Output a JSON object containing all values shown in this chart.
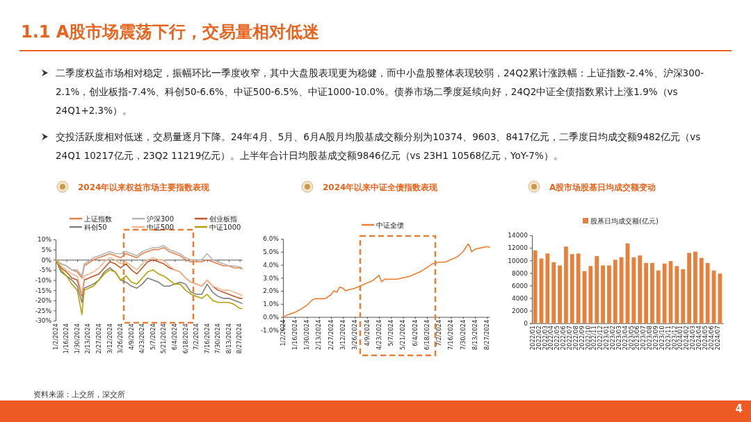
{
  "chart_data": [
    {
      "type": "other",
      "title": "1.1 A股市场震荡下行，交易量相对低迷",
      "annotations": [
        "二季度权益市场相对稳定，振幅环比一季度收窄，其中大盘股表现更为稳健，而中小盘股整体表现较弱，24Q2累计涨跌幅：上证指数-2.4%、沪深300-2.1%，创业板指-7.4%、科创50-6.6%、中证500-6.5%、中证1000-10.0%。债券市场二季度延续向好，24Q2中证全债指数累计上涨1.9%（vs 24Q1+2.3%）。",
        "交投活跃度相对低迷，交易量逐月下降。24年4月、5月、6月A股月均股基成交额分别为10374、9603、8417亿元，二季度日均成交额9482亿元（vs 24Q1 10217亿元，23Q2 11219亿元）。上半年合计日均股基成交额9846亿元（vs 23H1 10568亿元，YoY-7%）。",
        "资料来源：上交所，深交所",
        "4"
      ]
    },
    {
      "type": "line",
      "title": "2024年以来权益市场主要指数表现",
      "legend": "top",
      "x": [
        "2024-01-02",
        "2024-01-09",
        "2024-01-16",
        "2024-01-23",
        "2024-01-30",
        "2024-02-05",
        "2024-02-08",
        "2024-02-20",
        "2024-02-27",
        "2024-03-05",
        "2024-03-12",
        "2024-03-19",
        "2024-03-26",
        "2024-04-02",
        "2024-04-09",
        "2024-04-16",
        "2024-04-23",
        "2024-04-30",
        "2024-05-07",
        "2024-05-14",
        "2024-05-21",
        "2024-05-28",
        "2024-06-04",
        "2024-06-11",
        "2024-06-18",
        "2024-06-25",
        "2024-07-02",
        "2024-07-09",
        "2024-07-16",
        "2024-07-23",
        "2024-07-30",
        "2024-08-06",
        "2024-08-13",
        "2024-08-20",
        "2024-08-27",
        "2024-08-30"
      ],
      "xlim": [
        "2024-01-02",
        "2024-08-30"
      ],
      "xticks": [
        {
          "value": "2024-01-02",
          "label": "1/2/2024"
        },
        {
          "value": "2024-01-16",
          "label": "1/16/2024"
        },
        {
          "value": "2024-01-30",
          "label": "1/30/2024"
        },
        {
          "value": "2024-02-13",
          "label": "2/13/2024"
        },
        {
          "value": "2024-02-27",
          "label": "2/27/2024"
        },
        {
          "value": "2024-03-12",
          "label": "3/12/2024"
        },
        {
          "value": "2024-03-26",
          "label": "3/26/2024"
        },
        {
          "value": "2024-04-09",
          "label": "4/9/2024"
        },
        {
          "value": "2024-04-23",
          "label": "4/23/2024"
        },
        {
          "value": "2024-05-07",
          "label": "5/7/2024"
        },
        {
          "value": "2024-05-21",
          "label": "5/21/2024"
        },
        {
          "value": "2024-06-04",
          "label": "6/4/2024"
        },
        {
          "value": "2024-06-18",
          "label": "6/18/2024"
        },
        {
          "value": "2024-07-02",
          "label": "7/2/2024"
        },
        {
          "value": "2024-07-16",
          "label": "7/16/2024"
        },
        {
          "value": "2024-07-30",
          "label": "7/30/2024"
        },
        {
          "value": "2024-08-13",
          "label": "8/13/2024"
        },
        {
          "value": "2024-08-27",
          "label": "8/27/2024"
        }
      ],
      "ylim": [
        -30,
        10
      ],
      "yticks": [
        {
          "value": -30,
          "label": "-30%"
        },
        {
          "value": -25,
          "label": "-25%"
        },
        {
          "value": -20,
          "label": "-20%"
        },
        {
          "value": -15,
          "label": "-15%"
        },
        {
          "value": -10,
          "label": "-10%"
        },
        {
          "value": -5,
          "label": "-5%"
        },
        {
          "value": 0,
          "label": "0%"
        },
        {
          "value": 5,
          "label": "5%"
        },
        {
          "value": 10,
          "label": "10%"
        }
      ],
      "series": [
        {
          "name": "上证指数",
          "color": "#e8804a",
          "values": [
            0,
            -2,
            -3,
            -5,
            -6,
            -9,
            -3,
            0,
            1,
            2,
            3,
            2,
            1,
            3,
            2,
            1,
            3,
            4,
            5,
            5,
            6,
            4,
            3,
            2,
            0,
            -1,
            -1,
            -1,
            0,
            -1,
            -2,
            -3,
            -3,
            -4,
            -4,
            -4.5
          ]
        },
        {
          "name": "沪深300",
          "color": "#b4b4b4",
          "values": [
            0,
            -2,
            -3,
            -5,
            -5,
            -8,
            -2,
            1,
            2,
            3,
            4,
            3,
            3,
            4,
            3,
            2,
            4,
            5,
            6,
            6,
            7,
            5,
            4,
            3,
            1,
            0,
            0,
            0,
            3,
            0,
            -1,
            -2,
            -3,
            -3,
            -3.5,
            -4
          ]
        },
        {
          "name": "创业板指",
          "color": "#c0562a",
          "values": [
            0,
            -4,
            -6,
            -9,
            -10,
            -18,
            -10,
            -8,
            -7,
            -4,
            -1,
            -2,
            -4,
            -2,
            -5,
            -7,
            -4,
            -1,
            0,
            -1,
            -2,
            -4,
            -5,
            -6,
            -9,
            -11,
            -12,
            -13,
            -10,
            -13,
            -15,
            -16,
            -17,
            -18,
            -19,
            -19
          ]
        },
        {
          "name": "科创50",
          "color": "#7f7f7f",
          "values": [
            0,
            -6,
            -8,
            -10,
            -13,
            -21,
            -14,
            -12,
            -10,
            -6,
            -4,
            -6,
            -10,
            -11,
            -13,
            -14,
            -12,
            -9,
            -10,
            -11,
            -13,
            -13,
            -12,
            -11,
            -12,
            -16,
            -17,
            -17,
            -12,
            -16,
            -18,
            -19,
            -19,
            -20,
            -21,
            -21.5
          ]
        },
        {
          "name": "中证500",
          "color": "#f5b78e",
          "values": [
            0,
            -3,
            -5,
            -7,
            -8,
            -17,
            -8,
            -6,
            -4,
            -1,
            1,
            0,
            -2,
            -1,
            -3,
            -5,
            -2,
            0,
            1,
            0,
            0,
            -3,
            -5,
            -6,
            -9,
            -11,
            -12,
            -13,
            -10,
            -13,
            -14,
            -15,
            -15,
            -16,
            -17,
            -17.5
          ]
        },
        {
          "name": "中证1000",
          "color": "#b8a000",
          "values": [
            0,
            -5,
            -8,
            -12,
            -15,
            -27,
            -15,
            -13,
            -10,
            -7,
            -5,
            -6,
            -10,
            -8,
            -11,
            -12,
            -9,
            -6,
            -5,
            -7,
            -8,
            -10,
            -12,
            -12,
            -15,
            -17,
            -18,
            -19,
            -17,
            -20,
            -21,
            -21,
            -21,
            -22,
            -24,
            -24
          ]
        }
      ]
    },
    {
      "type": "line",
      "title": "2024年以来中证全债指数表现",
      "legend": "top",
      "x": [
        "2024-01-02",
        "2024-01-09",
        "2024-01-16",
        "2024-01-23",
        "2024-01-30",
        "2024-02-05",
        "2024-02-08",
        "2024-02-20",
        "2024-02-27",
        "2024-03-01",
        "2024-03-05",
        "2024-03-08",
        "2024-03-12",
        "2024-03-15",
        "2024-03-19",
        "2024-03-26",
        "2024-04-02",
        "2024-04-09",
        "2024-04-16",
        "2024-04-23",
        "2024-04-26",
        "2024-04-30",
        "2024-05-07",
        "2024-05-14",
        "2024-05-21",
        "2024-05-28",
        "2024-06-04",
        "2024-06-11",
        "2024-06-18",
        "2024-06-25",
        "2024-07-02",
        "2024-07-09",
        "2024-07-16",
        "2024-07-23",
        "2024-07-30",
        "2024-08-05",
        "2024-08-07",
        "2024-08-09",
        "2024-08-13",
        "2024-08-20",
        "2024-08-27",
        "2024-08-30"
      ],
      "xlim": [
        "2024-01-02",
        "2024-08-30"
      ],
      "xticks": [
        {
          "value": "2024-01-02",
          "label": "1/2/2024"
        },
        {
          "value": "2024-01-16",
          "label": "1/16/2024"
        },
        {
          "value": "2024-01-30",
          "label": "1/30/2024"
        },
        {
          "value": "2024-02-13",
          "label": "2/13/2024"
        },
        {
          "value": "2024-02-27",
          "label": "2/27/2024"
        },
        {
          "value": "2024-03-12",
          "label": "3/12/2024"
        },
        {
          "value": "2024-03-26",
          "label": "3/26/2024"
        },
        {
          "value": "2024-04-09",
          "label": "4/9/2024"
        },
        {
          "value": "2024-04-23",
          "label": "4/23/2024"
        },
        {
          "value": "2024-05-07",
          "label": "5/7/2024"
        },
        {
          "value": "2024-05-21",
          "label": "5/21/2024"
        },
        {
          "value": "2024-06-04",
          "label": "6/4/2024"
        },
        {
          "value": "2024-06-18",
          "label": "6/18/2024"
        },
        {
          "value": "2024-07-02",
          "label": "7/2/2024"
        },
        {
          "value": "2024-07-16",
          "label": "7/16/2024"
        },
        {
          "value": "2024-07-30",
          "label": "7/30/2024"
        },
        {
          "value": "2024-08-13",
          "label": "8/13/2024"
        },
        {
          "value": "2024-08-27",
          "label": "8/27/2024"
        }
      ],
      "ylim": [
        -1,
        6
      ],
      "yticks": [
        {
          "value": -1,
          "label": "-1.0%"
        },
        {
          "value": 0,
          "label": "0.0%"
        },
        {
          "value": 1,
          "label": "1.0%"
        },
        {
          "value": 2,
          "label": "2.0%"
        },
        {
          "value": 3,
          "label": "3.0%"
        },
        {
          "value": 4,
          "label": "4.0%"
        },
        {
          "value": 5,
          "label": "5.0%"
        },
        {
          "value": 6,
          "label": "6.0%"
        }
      ],
      "series": [
        {
          "name": "中证全债",
          "color": "#ed7d31",
          "values": [
            0,
            0.2,
            0.35,
            0.6,
            0.9,
            1.3,
            1.4,
            1.4,
            1.7,
            2.0,
            1.9,
            2.3,
            2.2,
            2.0,
            2.1,
            2.2,
            2.4,
            2.6,
            2.8,
            3.2,
            2.7,
            2.9,
            2.9,
            2.9,
            3.0,
            3.1,
            3.3,
            3.5,
            3.8,
            4.1,
            4.2,
            4.2,
            4.4,
            4.6,
            5.0,
            5.6,
            5.4,
            5.0,
            5.2,
            5.3,
            5.4,
            5.35
          ]
        }
      ]
    },
    {
      "type": "bar",
      "title": "A股市场股基日均成交额变动",
      "legend": "top",
      "categories": [
        "2022/01",
        "2022/02",
        "2022/03",
        "2022/04",
        "2022/05",
        "2022/06",
        "2022/07",
        "2022/08",
        "2022/09",
        "2022/10",
        "2022/11",
        "2022/12",
        "2023/01",
        "2023/02",
        "2023/03",
        "2023/04",
        "2023/05",
        "2023/06",
        "2023/07",
        "2023/08",
        "2023/09",
        "2023/10",
        "2023/11",
        "2023/12",
        "2024/01",
        "2024/02",
        "2024/03",
        "2024/04",
        "2024/05",
        "2024/06",
        "2024/07"
      ],
      "ylim": [
        0,
        14000
      ],
      "yticks": [
        0,
        2000,
        4000,
        6000,
        8000,
        10000,
        12000,
        14000
      ],
      "series": [
        {
          "name": "股基日均成交额(亿元)",
          "color": "#e8803c",
          "values": [
            11600,
            10300,
            11100,
            9700,
            9200,
            12200,
            11000,
            11100,
            8300,
            9100,
            10700,
            9200,
            9200,
            10100,
            10500,
            12700,
            10500,
            10800,
            9600,
            9600,
            8400,
            9500,
            9900,
            9100,
            8600,
            11200,
            11400,
            10400,
            9600,
            8400,
            7900
          ]
        }
      ]
    }
  ]
}
